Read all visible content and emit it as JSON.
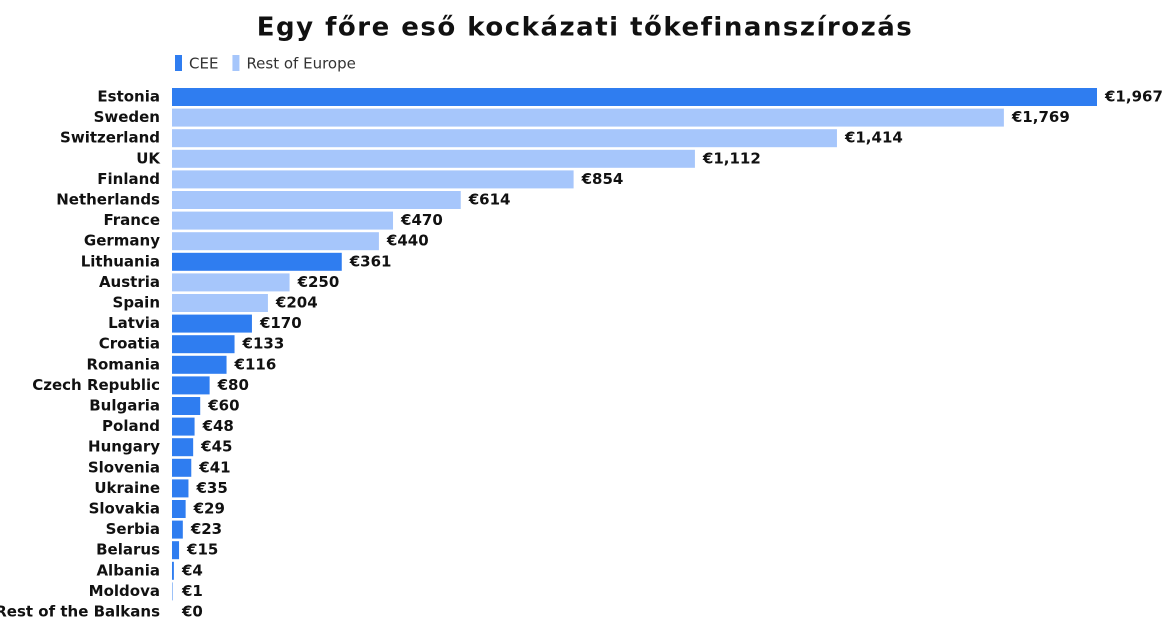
{
  "chart_data": {
    "type": "hbar",
    "title": "Egy főre eső kockázati tőkefinanszírozás",
    "categories": [
      "Estonia",
      "Sweden",
      "Switzerland",
      "UK",
      "Finland",
      "Netherlands",
      "France",
      "Germany",
      "Lithuania",
      "Austria",
      "Spain",
      "Latvia",
      "Croatia",
      "Romania",
      "Czech Republic",
      "Bulgaria",
      "Poland",
      "Hungary",
      "Slovenia",
      "Ukraine",
      "Slovakia",
      "Serbia",
      "Belarus",
      "Albania",
      "Moldova",
      "Rest of the Balkans"
    ],
    "series": [
      {
        "name": "CEE",
        "color": "#2f7df0",
        "values": [
          1967,
          null,
          null,
          null,
          null,
          null,
          null,
          null,
          361,
          null,
          null,
          170,
          133,
          116,
          80,
          60,
          48,
          45,
          41,
          35,
          29,
          23,
          15,
          4,
          1,
          0
        ],
        "value_labels": [
          "€1,967",
          null,
          null,
          null,
          null,
          null,
          null,
          null,
          "€361",
          null,
          null,
          "€170",
          "€133",
          "€116",
          "€80",
          "€60",
          "€48",
          "€45",
          "€41",
          "€35",
          "€29",
          "€23",
          "€15",
          "€4",
          "€1",
          "€0"
        ]
      },
      {
        "name": "Rest of Europe",
        "color": "#a6c6fb",
        "values": [
          null,
          1769,
          1414,
          1112,
          854,
          614,
          470,
          440,
          null,
          250,
          204,
          null,
          null,
          null,
          null,
          null,
          null,
          null,
          null,
          null,
          null,
          null,
          null,
          null,
          null,
          null
        ],
        "value_labels": [
          null,
          "€1,769",
          "€1,414",
          "€1,112",
          "€854",
          "€614",
          "€470",
          "€440",
          null,
          "€250",
          "€204",
          null,
          null,
          null,
          null,
          null,
          null,
          null,
          null,
          null,
          null,
          null,
          null,
          null,
          null,
          null
        ]
      }
    ]
  }
}
